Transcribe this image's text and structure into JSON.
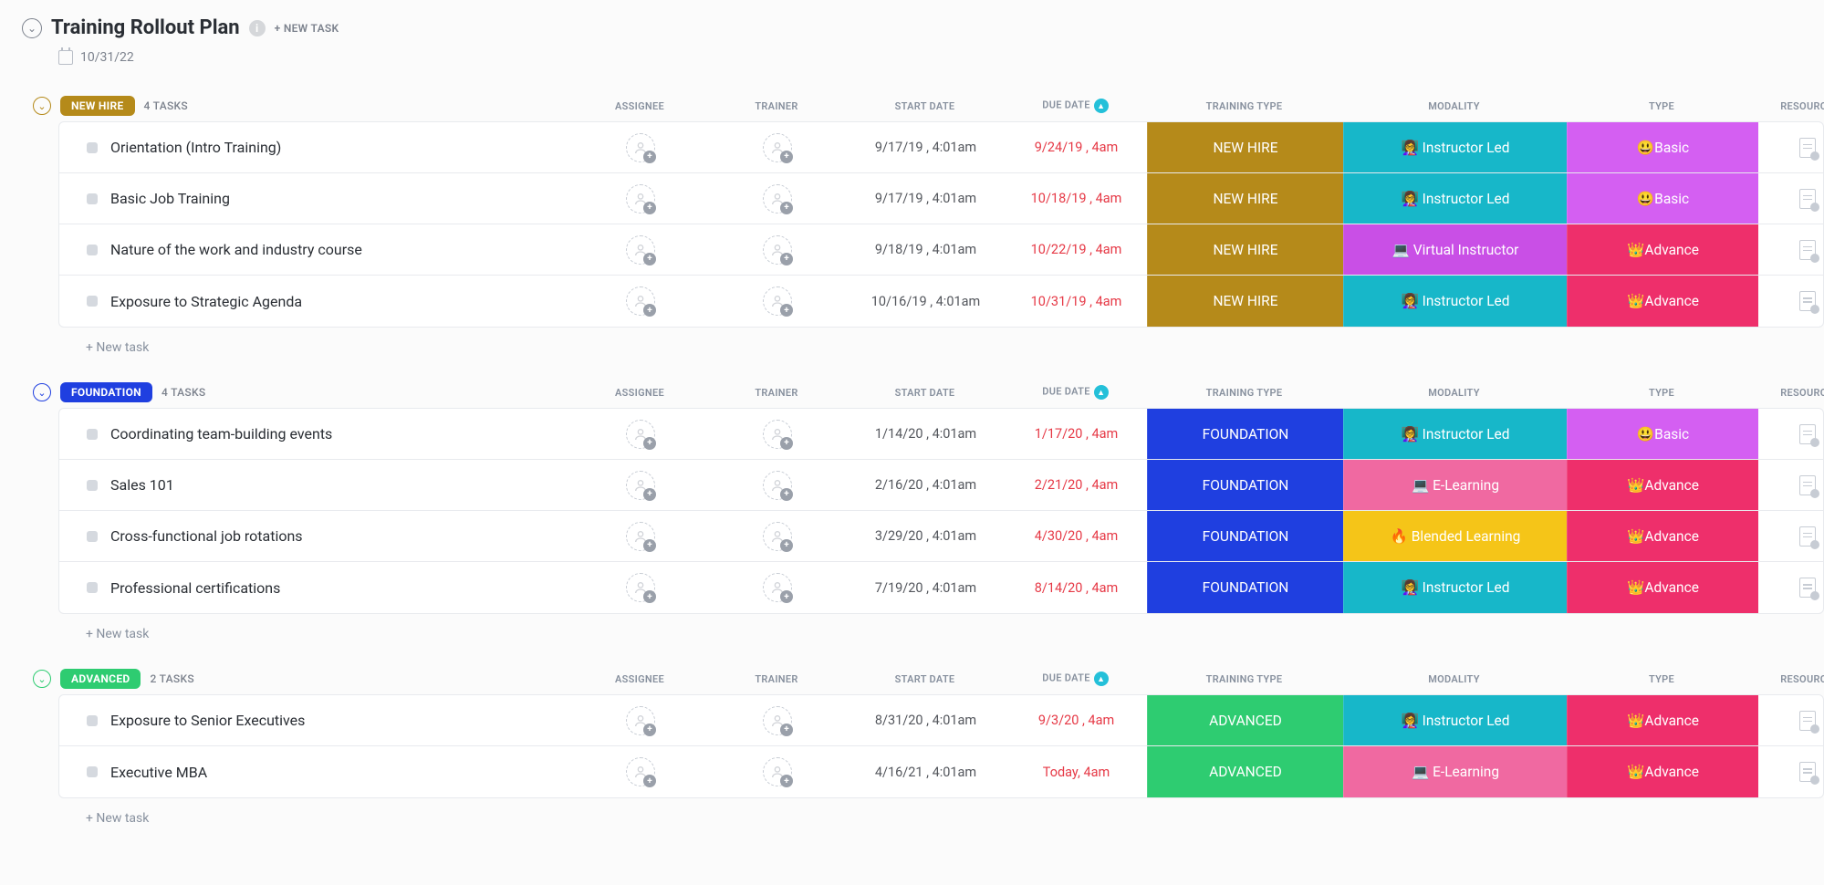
{
  "header": {
    "title": "Training Rollout Plan",
    "new_task_label": "+ NEW TASK",
    "date": "10/31/22"
  },
  "columns": {
    "assignee": "ASSIGNEE",
    "trainer": "TRAINER",
    "start_date": "START DATE",
    "due_date": "DUE DATE",
    "training_type": "TRAINING TYPE",
    "modality": "MODALITY",
    "type": "TYPE",
    "resource": "RESOURCE"
  },
  "new_task_row": "+ New task",
  "colors": {
    "new_hire_pill": "#b58a1a",
    "new_hire_border": "#b58a1a",
    "foundation_pill": "#1f3fe0",
    "foundation_border": "#1f3fe0",
    "advanced_pill": "#2ecc71",
    "advanced_border": "#2ecc71",
    "training_new_hire": "#b58a1a",
    "training_foundation": "#1f3fe0",
    "training_advanced": "#2ecc71",
    "mod_instructor": "#17b7c9",
    "mod_virtual": "#c94fe6",
    "mod_elearning": "#f069a1",
    "mod_blended": "#f5c518",
    "type_basic": "#d45ff2",
    "type_advance": "#ee2f6b"
  },
  "groups": [
    {
      "id": "new-hire",
      "label": "NEW HIRE",
      "count": "4 TASKS",
      "pill_bg_key": "new_hire_pill",
      "border_key": "new_hire_border",
      "tasks": [
        {
          "name": "Orientation (Intro Training)",
          "start": "9/17/19 , 4:01am",
          "due": "9/24/19 , 4am",
          "training_type": "NEW HIRE",
          "tt_key": "training_new_hire",
          "modality": "👩‍🏫 Instructor Led",
          "mod_key": "mod_instructor",
          "type": "😃Basic",
          "type_key": "type_basic"
        },
        {
          "name": "Basic Job Training",
          "start": "9/17/19 , 4:01am",
          "due": "10/18/19 , 4am",
          "training_type": "NEW HIRE",
          "tt_key": "training_new_hire",
          "modality": "👩‍🏫 Instructor Led",
          "mod_key": "mod_instructor",
          "type": "😃Basic",
          "type_key": "type_basic"
        },
        {
          "name": "Nature of the work and industry course",
          "start": "9/18/19 , 4:01am",
          "due": "10/22/19 , 4am",
          "training_type": "NEW HIRE",
          "tt_key": "training_new_hire",
          "modality": "💻 Virtual Instructor",
          "mod_key": "mod_virtual",
          "type": "👑Advance",
          "type_key": "type_advance"
        },
        {
          "name": "Exposure to Strategic Agenda",
          "start": "10/16/19 , 4:01am",
          "due": "10/31/19 , 4am",
          "training_type": "NEW HIRE",
          "tt_key": "training_new_hire",
          "modality": "👩‍🏫 Instructor Led",
          "mod_key": "mod_instructor",
          "type": "👑Advance",
          "type_key": "type_advance"
        }
      ]
    },
    {
      "id": "foundation",
      "label": "FOUNDATION",
      "count": "4 TASKS",
      "pill_bg_key": "foundation_pill",
      "border_key": "foundation_border",
      "tasks": [
        {
          "name": "Coordinating team-building events",
          "start": "1/14/20 , 4:01am",
          "due": "1/17/20 , 4am",
          "training_type": "FOUNDATION",
          "tt_key": "training_foundation",
          "modality": "👩‍🏫 Instructor Led",
          "mod_key": "mod_instructor",
          "type": "😃Basic",
          "type_key": "type_basic"
        },
        {
          "name": "Sales 101",
          "start": "2/16/20 , 4:01am",
          "due": "2/21/20 , 4am",
          "training_type": "FOUNDATION",
          "tt_key": "training_foundation",
          "modality": "💻 E-Learning",
          "mod_key": "mod_elearning",
          "type": "👑Advance",
          "type_key": "type_advance"
        },
        {
          "name": "Cross-functional job rotations",
          "start": "3/29/20 , 4:01am",
          "due": "4/30/20 , 4am",
          "training_type": "FOUNDATION",
          "tt_key": "training_foundation",
          "modality": "🔥 Blended Learning",
          "mod_key": "mod_blended",
          "type": "👑Advance",
          "type_key": "type_advance"
        },
        {
          "name": "Professional certifications",
          "start": "7/19/20 , 4:01am",
          "due": "8/14/20 , 4am",
          "training_type": "FOUNDATION",
          "tt_key": "training_foundation",
          "modality": "👩‍🏫 Instructor Led",
          "mod_key": "mod_instructor",
          "type": "👑Advance",
          "type_key": "type_advance"
        }
      ]
    },
    {
      "id": "advanced",
      "label": "ADVANCED",
      "count": "2 TASKS",
      "pill_bg_key": "advanced_pill",
      "border_key": "advanced_border",
      "tasks": [
        {
          "name": "Exposure to Senior Executives",
          "start": "8/31/20 , 4:01am",
          "due": "9/3/20 , 4am",
          "training_type": "ADVANCED",
          "tt_key": "training_advanced",
          "modality": "👩‍🏫 Instructor Led",
          "mod_key": "mod_instructor",
          "type": "👑Advance",
          "type_key": "type_advance"
        },
        {
          "name": "Executive MBA",
          "start": "4/16/21 , 4:01am",
          "due": "Today, 4am",
          "training_type": "ADVANCED",
          "tt_key": "training_advanced",
          "modality": "💻 E-Learning",
          "mod_key": "mod_elearning",
          "type": "👑Advance",
          "type_key": "type_advance"
        }
      ]
    }
  ]
}
